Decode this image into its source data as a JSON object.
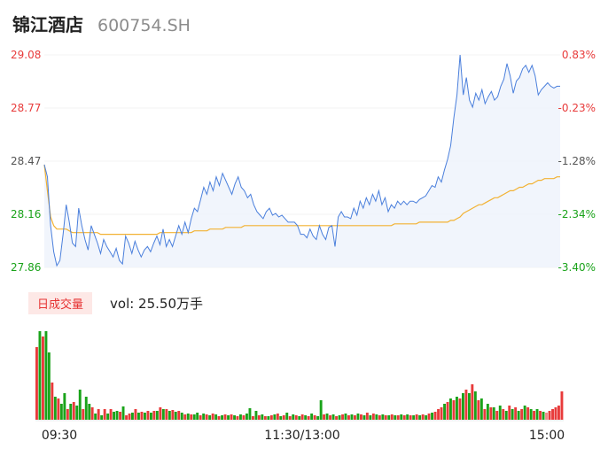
{
  "header": {
    "name": "锦江酒店",
    "code": "600754.SH"
  },
  "volume_tab": "日成交量",
  "volume_text": "vol: 25.50万手",
  "colors": {
    "price": "#4a7fdc",
    "avg": "#f2b233",
    "up": "#e83b3b",
    "down": "#1aa31a",
    "fill": "#eef2fb",
    "neutral": "#555555"
  },
  "chart_data": [
    {
      "type": "line",
      "y_labels_left": [
        "29.08",
        "28.77",
        "28.47",
        "28.16",
        "27.86"
      ],
      "y_labels_right": [
        "0.83%",
        "-0.23%",
        "-1.28%",
        "-2.34%",
        "-3.40%"
      ],
      "ylim": [
        27.86,
        29.08
      ],
      "x_labels": [
        "09:30",
        "11:30/13:00",
        "15:00"
      ],
      "series": [
        {
          "values": [
            28.45,
            28.38,
            28.1,
            27.95,
            27.87,
            27.9,
            28.05,
            28.22,
            28.12,
            28.0,
            27.98,
            28.2,
            28.1,
            28.02,
            27.96,
            28.1,
            28.05,
            28.0,
            27.94,
            28.02,
            27.98,
            27.95,
            27.92,
            27.97,
            27.9,
            27.88,
            28.04,
            28.0,
            27.94,
            28.01,
            27.96,
            27.92,
            27.96,
            27.98,
            27.95,
            28.0,
            28.04,
            27.99,
            28.08,
            27.98,
            28.02,
            27.98,
            28.04,
            28.1,
            28.05,
            28.12,
            28.06,
            28.14,
            28.2,
            28.18,
            28.25,
            28.32,
            28.28,
            28.35,
            28.3,
            28.38,
            28.33,
            28.4,
            28.36,
            28.32,
            28.28,
            28.34,
            28.38,
            28.32,
            28.3,
            28.26,
            28.28,
            28.22,
            28.18,
            28.16,
            28.14,
            28.18,
            28.2,
            28.16,
            28.17,
            28.15,
            28.16,
            28.14,
            28.12,
            28.12,
            28.12,
            28.1,
            28.05,
            28.05,
            28.03,
            28.08,
            28.04,
            28.02,
            28.1,
            28.05,
            28.02,
            28.09,
            28.1,
            27.98,
            28.15,
            28.18,
            28.15,
            28.15,
            28.14,
            28.2,
            28.16,
            28.24,
            28.2,
            28.26,
            28.22,
            28.28,
            28.24,
            28.3,
            28.22,
            28.26,
            28.18,
            28.22,
            28.2,
            28.24,
            28.22,
            28.24,
            28.22,
            28.24,
            28.24,
            28.23,
            28.25,
            28.26,
            28.27,
            28.3,
            28.33,
            28.32,
            28.38,
            28.35,
            28.42,
            28.48,
            28.56,
            28.72,
            28.85,
            29.08,
            28.85,
            28.95,
            28.82,
            28.78,
            28.86,
            28.82,
            28.88,
            28.8,
            28.84,
            28.87,
            28.82,
            28.84,
            28.9,
            28.94,
            29.03,
            28.96,
            28.86,
            28.93,
            28.95,
            29.0,
            29.02,
            28.98,
            29.02,
            28.96,
            28.85,
            28.88,
            28.9,
            28.92,
            28.9,
            28.89,
            28.9,
            28.9
          ]
        },
        {
          "values": [
            28.45,
            28.3,
            28.15,
            28.1,
            28.08,
            28.08,
            28.08,
            28.08,
            28.07,
            28.06,
            28.06,
            28.06,
            28.06,
            28.06,
            28.06,
            28.06,
            28.06,
            28.06,
            28.05,
            28.05,
            28.05,
            28.05,
            28.05,
            28.05,
            28.05,
            28.05,
            28.05,
            28.05,
            28.05,
            28.05,
            28.05,
            28.05,
            28.05,
            28.05,
            28.05,
            28.05,
            28.05,
            28.06,
            28.06,
            28.06,
            28.06,
            28.06,
            28.06,
            28.06,
            28.06,
            28.06,
            28.06,
            28.06,
            28.07,
            28.07,
            28.07,
            28.07,
            28.07,
            28.08,
            28.08,
            28.08,
            28.08,
            28.08,
            28.09,
            28.09,
            28.09,
            28.09,
            28.09,
            28.09,
            28.1,
            28.1,
            28.1,
            28.1,
            28.1,
            28.1,
            28.1,
            28.1,
            28.1,
            28.1,
            28.1,
            28.1,
            28.1,
            28.1,
            28.1,
            28.1,
            28.1,
            28.1,
            28.1,
            28.1,
            28.1,
            28.1,
            28.1,
            28.1,
            28.1,
            28.1,
            28.1,
            28.1,
            28.1,
            28.1,
            28.1,
            28.1,
            28.1,
            28.1,
            28.1,
            28.1,
            28.1,
            28.1,
            28.1,
            28.1,
            28.1,
            28.1,
            28.1,
            28.1,
            28.1,
            28.1,
            28.1,
            28.1,
            28.11,
            28.11,
            28.11,
            28.11,
            28.11,
            28.11,
            28.11,
            28.11,
            28.12,
            28.12,
            28.12,
            28.12,
            28.12,
            28.12,
            28.12,
            28.12,
            28.12,
            28.12,
            28.13,
            28.13,
            28.14,
            28.15,
            28.17,
            28.18,
            28.19,
            28.2,
            28.21,
            28.22,
            28.22,
            28.23,
            28.24,
            28.25,
            28.26,
            28.26,
            28.27,
            28.28,
            28.29,
            28.3,
            28.3,
            28.31,
            28.32,
            28.32,
            28.33,
            28.34,
            28.34,
            28.35,
            28.36,
            28.36,
            28.37,
            28.37,
            28.37,
            28.37,
            28.38,
            28.38
          ]
        }
      ]
    },
    {
      "type": "bar",
      "values": [
        8.2,
        10,
        9.4,
        10,
        7.6,
        4.2,
        2.6,
        2.4,
        1.8,
        3.0,
        1.2,
        1.8,
        2.0,
        1.6,
        3.4,
        1.2,
        2.6,
        1.8,
        1.4,
        0.7,
        1.2,
        0.5,
        1.2,
        0.7,
        1.2,
        0.9,
        1.0,
        0.9,
        1.5,
        0.5,
        0.7,
        0.8,
        1.2,
        0.8,
        0.9,
        0.8,
        1.0,
        0.8,
        1.0,
        1.0,
        1.4,
        1.2,
        1.2,
        1.0,
        1.1,
        0.9,
        1.0,
        0.8,
        0.6,
        0.7,
        0.6,
        0.6,
        0.8,
        0.5,
        0.7,
        0.6,
        0.5,
        0.7,
        0.6,
        0.4,
        0.5,
        0.6,
        0.5,
        0.6,
        0.5,
        0.4,
        0.6,
        0.5,
        0.7,
        1.3,
        0.4,
        1.0,
        0.5,
        0.6,
        0.4,
        0.4,
        0.5,
        0.6,
        0.7,
        0.4,
        0.5,
        0.8,
        0.4,
        0.6,
        0.5,
        0.4,
        0.6,
        0.5,
        0.4,
        0.7,
        0.5,
        0.4,
        2.2,
        0.6,
        0.7,
        0.5,
        0.6,
        0.4,
        0.5,
        0.6,
        0.7,
        0.5,
        0.6,
        0.5,
        0.7,
        0.6,
        0.5,
        0.8,
        0.5,
        0.7,
        0.6,
        0.5,
        0.6,
        0.5,
        0.5,
        0.6,
        0.5,
        0.5,
        0.6,
        0.5,
        0.6,
        0.5,
        0.5,
        0.6,
        0.5,
        0.6,
        0.5,
        0.7,
        0.8,
        0.9,
        1.2,
        1.4,
        1.8,
        2.0,
        2.4,
        2.2,
        2.6,
        2.4,
        3.0,
        3.4,
        3.0,
        4.0,
        3.2,
        2.2,
        2.4,
        1.2,
        1.8,
        1.4,
        1.4,
        1.0,
        1.6,
        1.2,
        1.0,
        1.6,
        1.2,
        1.4,
        1.0,
        1.2,
        1.6,
        1.4,
        1.2,
        1.0,
        1.2,
        1.0,
        0.9,
        0.8,
        1.0,
        1.2,
        1.4,
        1.6,
        3.2
      ],
      "colors": [
        "red",
        "green",
        "red",
        "green",
        "green",
        "red",
        "green",
        "red",
        "green",
        "green",
        "red",
        "green",
        "red",
        "green",
        "green",
        "red",
        "green",
        "green",
        "red",
        "green",
        "red",
        "green",
        "red",
        "green",
        "red",
        "green",
        "green",
        "red",
        "green",
        "red",
        "red",
        "green",
        "red",
        "green",
        "red",
        "green",
        "red",
        "green",
        "red",
        "green",
        "red",
        "green",
        "red",
        "green",
        "red",
        "green",
        "red",
        "green",
        "red",
        "green",
        "red",
        "green",
        "green",
        "red",
        "green",
        "red",
        "green",
        "red",
        "green",
        "red",
        "green",
        "red",
        "green",
        "red",
        "green",
        "red",
        "green",
        "red",
        "green",
        "green",
        "red",
        "green",
        "red",
        "green",
        "red",
        "green",
        "red",
        "green",
        "red",
        "green",
        "red",
        "green",
        "red",
        "green",
        "red",
        "green",
        "red",
        "green",
        "red",
        "green",
        "red",
        "green",
        "green",
        "red",
        "green",
        "red",
        "green",
        "red",
        "green",
        "red",
        "green",
        "red",
        "green",
        "red",
        "green",
        "red",
        "green",
        "red",
        "green",
        "red",
        "green",
        "red",
        "green",
        "red",
        "green",
        "red",
        "green",
        "red",
        "green",
        "red",
        "green",
        "red",
        "green",
        "red",
        "green",
        "red",
        "green",
        "red",
        "green",
        "red",
        "red",
        "red",
        "green",
        "red",
        "green",
        "red",
        "green",
        "red",
        "green",
        "red",
        "green",
        "red",
        "green",
        "red",
        "green",
        "red",
        "green",
        "red",
        "green",
        "red",
        "green",
        "red",
        "green",
        "red",
        "green",
        "red",
        "green",
        "red",
        "green",
        "red",
        "green",
        "red",
        "green",
        "red",
        "green",
        "neutral"
      ]
    }
  ]
}
